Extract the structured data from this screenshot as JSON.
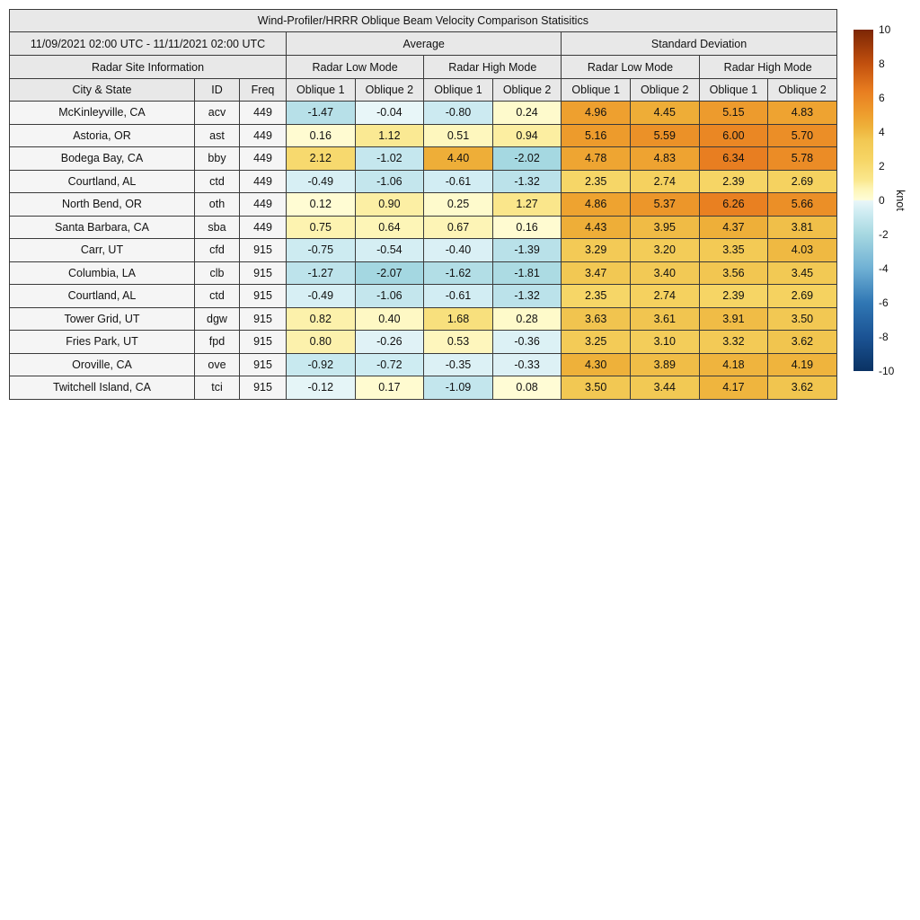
{
  "title": "Wind-Profiler/HRRR Oblique Beam Velocity Comparison Statisitics",
  "table": {
    "date_range": "11/09/2021 02:00 UTC - 11/11/2021 02:00 UTC",
    "stat_groups": [
      "Average",
      "Standard Deviation"
    ],
    "site_info_header": "Radar Site Information",
    "mode_headers": [
      "Radar Low Mode",
      "Radar High Mode",
      "Radar Low Mode",
      "Radar High Mode"
    ],
    "col_headers": [
      "City & State",
      "ID",
      "Freq"
    ],
    "oblique_headers": [
      "Oblique 1",
      "Oblique 2",
      "Oblique 1",
      "Oblique 2",
      "Oblique 1",
      "Oblique 2",
      "Oblique 1",
      "Oblique 2"
    ]
  },
  "colorbar": {
    "label": "knot",
    "min": -10,
    "max": 10,
    "ticks": [
      10,
      8,
      6,
      4,
      2,
      0,
      -2,
      -4,
      -6,
      -8,
      -10
    ],
    "stops": [
      [
        -10,
        "#0a3263"
      ],
      [
        -8,
        "#1b5394"
      ],
      [
        -6,
        "#3077b4"
      ],
      [
        -4,
        "#6fb0d4"
      ],
      [
        -2,
        "#a6d8e1"
      ],
      [
        -0.7,
        "#cfecf2"
      ],
      [
        -0.02,
        "#e9f6f8"
      ],
      [
        0.02,
        "#fffdd8"
      ],
      [
        0.7,
        "#fdf4b4"
      ],
      [
        1.2,
        "#fae78d"
      ],
      [
        2.4,
        "#f6d565"
      ],
      [
        3.5,
        "#f2c853"
      ],
      [
        4.3,
        "#eeb13a"
      ],
      [
        5.0,
        "#ee9f2e"
      ],
      [
        6.4,
        "#e87d20"
      ],
      [
        8.0,
        "#c2500e"
      ],
      [
        10,
        "#7c2605"
      ]
    ]
  },
  "chart_data": {
    "type": "heatmap",
    "title": "Wind-Profiler/HRRR Oblique Beam Velocity Comparison Statisitics",
    "value_unit": "knot",
    "value_range": [
      -10,
      10
    ],
    "value_columns": [
      "Average / Radar Low Mode / Oblique 1",
      "Average / Radar Low Mode / Oblique 2",
      "Average / Radar High Mode / Oblique 1",
      "Average / Radar High Mode / Oblique 2",
      "Standard Deviation / Radar Low Mode / Oblique 1",
      "Standard Deviation / Radar Low Mode / Oblique 2",
      "Standard Deviation / Radar High Mode / Oblique 1",
      "Standard Deviation / Radar High Mode / Oblique 2"
    ],
    "rows": [
      {
        "city": "McKinleyville, CA",
        "id": "acv",
        "freq": "449",
        "values": [
          -1.47,
          -0.04,
          -0.8,
          0.24,
          4.96,
          4.45,
          5.15,
          4.83
        ]
      },
      {
        "city": "Astoria, OR",
        "id": "ast",
        "freq": "449",
        "values": [
          0.16,
          1.12,
          0.51,
          0.94,
          5.16,
          5.59,
          6.0,
          5.7
        ]
      },
      {
        "city": "Bodega Bay, CA",
        "id": "bby",
        "freq": "449",
        "values": [
          2.12,
          -1.02,
          4.4,
          -2.02,
          4.78,
          4.83,
          6.34,
          5.78
        ]
      },
      {
        "city": "Courtland, AL",
        "id": "ctd",
        "freq": "449",
        "values": [
          -0.49,
          -1.06,
          -0.61,
          -1.32,
          2.35,
          2.74,
          2.39,
          2.69
        ]
      },
      {
        "city": "North Bend, OR",
        "id": "oth",
        "freq": "449",
        "values": [
          0.12,
          0.9,
          0.25,
          1.27,
          4.86,
          5.37,
          6.26,
          5.66
        ]
      },
      {
        "city": "Santa Barbara, CA",
        "id": "sba",
        "freq": "449",
        "values": [
          0.75,
          0.64,
          0.67,
          0.16,
          4.43,
          3.95,
          4.37,
          3.81
        ]
      },
      {
        "city": "Carr, UT",
        "id": "cfd",
        "freq": "915",
        "values": [
          -0.75,
          -0.54,
          -0.4,
          -1.39,
          3.29,
          3.2,
          3.35,
          4.03
        ]
      },
      {
        "city": "Columbia, LA",
        "id": "clb",
        "freq": "915",
        "values": [
          -1.27,
          -2.07,
          -1.62,
          -1.81,
          3.47,
          3.4,
          3.56,
          3.45
        ]
      },
      {
        "city": "Courtland, AL",
        "id": "ctd",
        "freq": "915",
        "values": [
          -0.49,
          -1.06,
          -0.61,
          -1.32,
          2.35,
          2.74,
          2.39,
          2.69
        ]
      },
      {
        "city": "Tower Grid, UT",
        "id": "dgw",
        "freq": "915",
        "values": [
          0.82,
          0.4,
          1.68,
          0.28,
          3.63,
          3.61,
          3.91,
          3.5
        ]
      },
      {
        "city": "Fries Park, UT",
        "id": "fpd",
        "freq": "915",
        "values": [
          0.8,
          -0.26,
          0.53,
          -0.36,
          3.25,
          3.1,
          3.32,
          3.62
        ]
      },
      {
        "city": "Oroville, CA",
        "id": "ove",
        "freq": "915",
        "values": [
          -0.92,
          -0.72,
          -0.35,
          -0.33,
          4.3,
          3.89,
          4.18,
          4.19
        ]
      },
      {
        "city": "Twitchell Island, CA",
        "id": "tci",
        "freq": "915",
        "values": [
          -0.12,
          0.17,
          -1.09,
          0.08,
          3.5,
          3.44,
          4.17,
          3.62
        ]
      }
    ]
  }
}
